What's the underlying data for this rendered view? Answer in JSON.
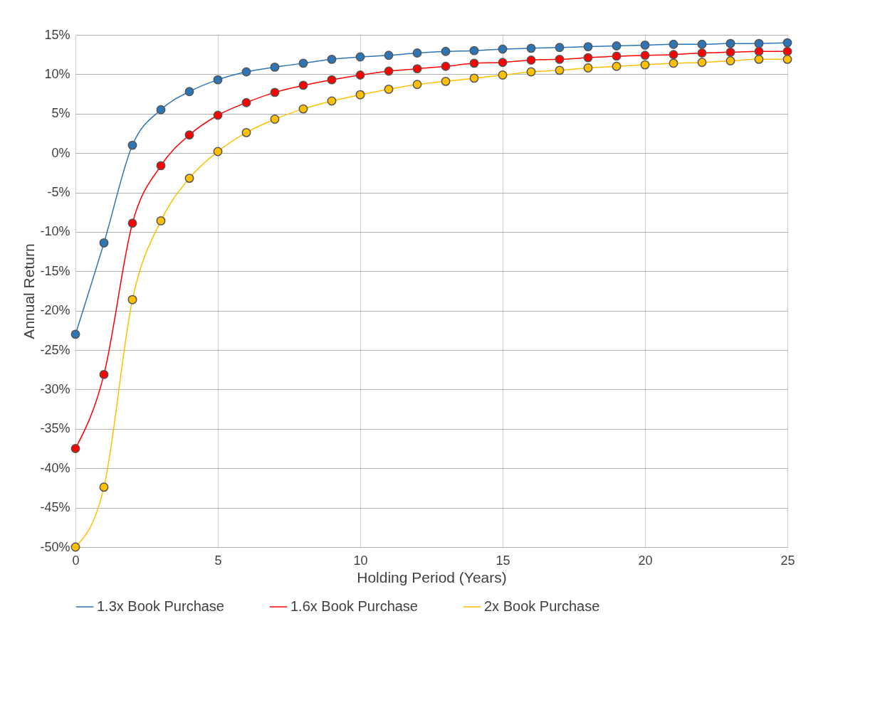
{
  "chart_data": {
    "type": "line",
    "xlabel": "Holding Period (Years)",
    "ylabel": "Annual Return",
    "x": [
      0,
      1,
      2,
      3,
      4,
      5,
      6,
      7,
      8,
      9,
      10,
      11,
      12,
      13,
      14,
      15,
      16,
      17,
      18,
      19,
      20,
      21,
      22,
      23,
      24,
      25
    ],
    "series": [
      {
        "name": "1.3x Book Purchase",
        "color": "#2e75b6",
        "values": [
          -23.0,
          -11.4,
          1.0,
          5.5,
          7.8,
          9.3,
          10.3,
          10.9,
          11.4,
          11.9,
          12.2,
          12.4,
          12.7,
          12.9,
          13.0,
          13.2,
          13.3,
          13.4,
          13.5,
          13.6,
          13.7,
          13.8,
          13.8,
          13.9,
          13.9,
          14.0
        ]
      },
      {
        "name": "1.6x Book Purchase",
        "color": "#ff0000",
        "values": [
          -37.5,
          -28.1,
          -8.9,
          -1.6,
          2.3,
          4.8,
          6.4,
          7.7,
          8.6,
          9.3,
          9.9,
          10.4,
          10.7,
          11.0,
          11.4,
          11.5,
          11.8,
          11.9,
          12.1,
          12.3,
          12.4,
          12.5,
          12.7,
          12.8,
          12.9,
          12.9
        ]
      },
      {
        "name": "2x Book Purchase",
        "color": "#ffc000",
        "values": [
          -50.0,
          -42.4,
          -18.6,
          -8.6,
          -3.2,
          0.2,
          2.6,
          4.3,
          5.6,
          6.6,
          7.4,
          8.1,
          8.7,
          9.1,
          9.5,
          9.9,
          10.3,
          10.5,
          10.8,
          11.0,
          11.2,
          11.4,
          11.5,
          11.7,
          11.9,
          11.9
        ]
      }
    ],
    "xlim": [
      0,
      25
    ],
    "xticks": [
      0,
      5,
      10,
      15,
      20,
      25
    ],
    "ylim": [
      -50,
      15
    ],
    "yticks": [
      {
        "value": -50,
        "label": "-50%"
      },
      {
        "value": -45,
        "label": "-45%"
      },
      {
        "value": -40,
        "label": "-40%"
      },
      {
        "value": -35,
        "label": "-35%"
      },
      {
        "value": -30,
        "label": "-30%"
      },
      {
        "value": -25,
        "label": "-25%"
      },
      {
        "value": -20,
        "label": "-20%"
      },
      {
        "value": -15,
        "label": "-15%"
      },
      {
        "value": -10,
        "label": "-10%"
      },
      {
        "value": -5,
        "label": "-5%"
      },
      {
        "value": 0,
        "label": "0%"
      },
      {
        "value": 5,
        "label": "5%"
      },
      {
        "value": 10,
        "label": "10%"
      },
      {
        "value": 15,
        "label": "15%"
      }
    ],
    "grid": true,
    "legend": "bottom",
    "marker": "circle",
    "line_style": "solid"
  }
}
